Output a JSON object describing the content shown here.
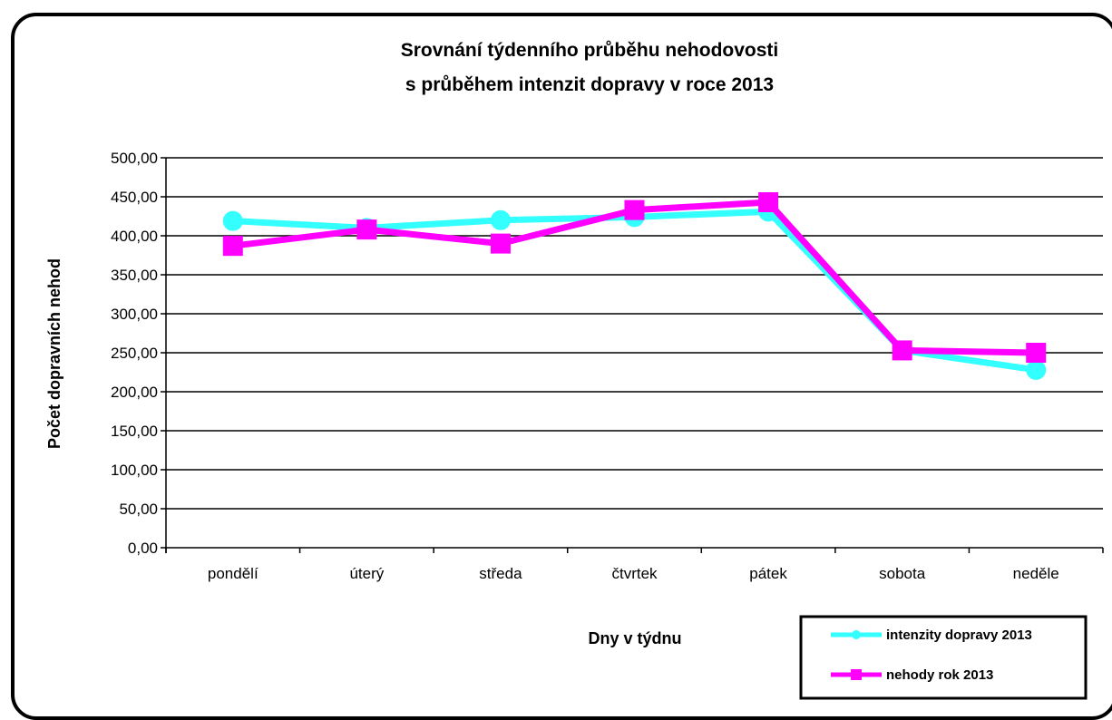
{
  "chart_data": {
    "type": "line",
    "title_lines": [
      "Srovnání týdenního průběhu nehodovosti",
      "s průběhem intenzit dopravy v roce 2013"
    ],
    "xlabel": "Dny v týdnu",
    "ylabel": "Počet dopravních nehod",
    "categories": [
      "pondělí",
      "úterý",
      "středa",
      "čtvrtek",
      "pátek",
      "sobota",
      "neděle"
    ],
    "ylim": [
      0,
      500
    ],
    "ytick_labels": [
      "0,00",
      "50,00",
      "100,00",
      "150,00",
      "200,00",
      "250,00",
      "300,00",
      "350,00",
      "400,00",
      "450,00",
      "500,00"
    ],
    "ytick_values": [
      0,
      50,
      100,
      150,
      200,
      250,
      300,
      350,
      400,
      450,
      500
    ],
    "grid": true,
    "legend_position": "bottom-right",
    "series": [
      {
        "name": "intenzity dopravy 2013",
        "marker": "circle",
        "color": "#33FFFF",
        "values": [
          419,
          410,
          420,
          424,
          431,
          253,
          228
        ]
      },
      {
        "name": "nehody rok 2013",
        "marker": "square",
        "color": "#FF00FF",
        "values": [
          387,
          408,
          390,
          433,
          443,
          253,
          250
        ]
      }
    ]
  }
}
